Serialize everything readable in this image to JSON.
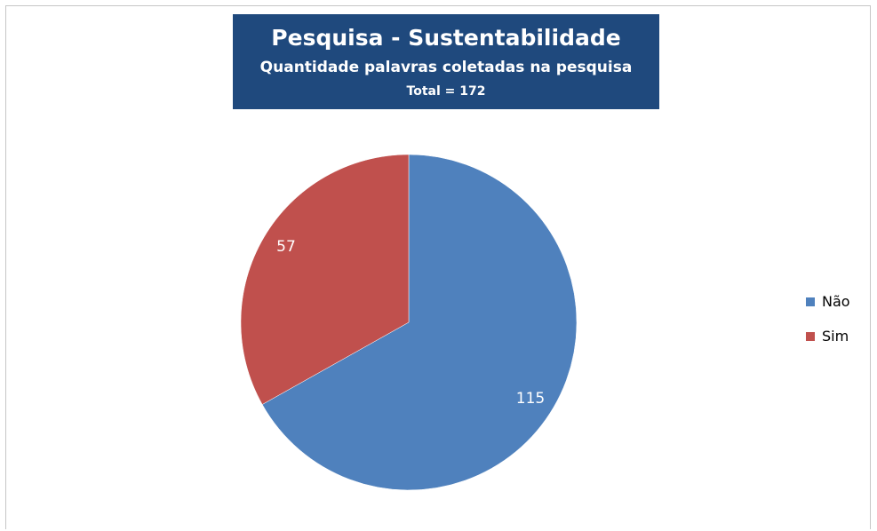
{
  "chart_data": {
    "type": "pie",
    "title": "Pesquisa - Sustentabilidade",
    "subtitle": "Quantidade palavras coletadas na pesquisa",
    "total_label": "Total = 172",
    "categories": [
      "Não",
      "Sim"
    ],
    "values": [
      115,
      57
    ],
    "colors": [
      "#4f81bd",
      "#c0504d"
    ],
    "title_background": "#1f497d",
    "legend_position": "right",
    "data_labels": true
  }
}
